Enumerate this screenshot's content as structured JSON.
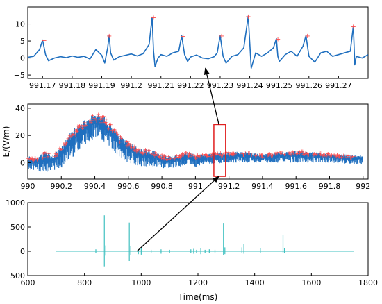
{
  "chart_data": [
    {
      "type": "line",
      "panel": "top",
      "xlim": [
        991.165,
        991.28
      ],
      "ylim": [
        -6,
        15
      ],
      "x_ticks": [
        991.17,
        991.18,
        991.19,
        991.2,
        991.21,
        991.22,
        991.23,
        991.24,
        991.25,
        991.26,
        991.27
      ],
      "x_tick_labels": [
        "991.17",
        "991.18",
        "991.19",
        "991.2",
        "991.21",
        "991.22",
        "991.23",
        "991.24",
        "991.25",
        "991.26",
        "991.27"
      ],
      "y_ticks": [
        -5,
        0,
        5,
        10
      ],
      "y_tick_labels": [
        "−5",
        "0",
        "5",
        "10"
      ],
      "line_color": "#1f6fbf",
      "marker_color": "#ff4d4d",
      "series": [
        {
          "x": [
            991.165,
            991.167,
            991.169,
            991.17,
            991.171,
            991.172,
            991.174,
            991.176,
            991.178,
            991.18,
            991.182,
            991.184,
            991.186,
            991.188,
            991.19,
            991.191,
            991.192,
            991.1925,
            991.193,
            991.194,
            991.196,
            991.198,
            991.2,
            991.202,
            991.204,
            991.206,
            991.207,
            991.2075,
            991.208,
            991.209,
            991.21,
            991.212,
            991.214,
            991.216,
            991.217,
            991.218,
            991.219,
            991.22,
            991.222,
            991.224,
            991.226,
            991.228,
            991.229,
            991.23,
            991.231,
            991.232,
            991.234,
            991.236,
            991.238,
            991.2395,
            991.2405,
            991.242,
            991.244,
            991.246,
            991.248,
            991.249,
            991.2495,
            991.25,
            991.252,
            991.254,
            991.256,
            991.258,
            991.259,
            991.26,
            991.262,
            991.264,
            991.266,
            991.268,
            991.27,
            991.272,
            991.274,
            991.275,
            991.2755,
            991.276,
            991.278,
            991.28
          ],
          "y": [
            0.2,
            0.5,
            2.5,
            5.3,
            1.0,
            -0.8,
            0.0,
            0.4,
            0.1,
            0.6,
            0.2,
            0.5,
            -0.3,
            2.5,
            0.8,
            -1.5,
            3.0,
            6.6,
            1.5,
            -0.6,
            0.4,
            0.8,
            1.2,
            0.6,
            1.3,
            4.0,
            12.0,
            2.0,
            -2.5,
            0.0,
            1.0,
            0.5,
            1.5,
            2.0,
            6.5,
            1.0,
            -1.0,
            0.3,
            0.9,
            0.0,
            -0.2,
            0.4,
            1.5,
            6.6,
            0.5,
            -1.5,
            0.5,
            1.0,
            3.0,
            12.3,
            -3.0,
            1.5,
            0.5,
            1.5,
            3.0,
            5.7,
            0.5,
            -1.0,
            1.0,
            2.0,
            0.5,
            3.5,
            6.6,
            0.5,
            -1.2,
            1.5,
            2.0,
            0.5,
            1.0,
            1.5,
            2.0,
            9.4,
            -2.0,
            0.5,
            0.0,
            1.0
          ]
        }
      ],
      "peaks": [
        {
          "x": 991.1705,
          "y": 5.3
        },
        {
          "x": 991.1925,
          "y": 6.6
        },
        {
          "x": 991.2075,
          "y": 12.0
        },
        {
          "x": 991.2175,
          "y": 6.5
        },
        {
          "x": 991.2305,
          "y": 6.6
        },
        {
          "x": 991.2395,
          "y": 12.3
        },
        {
          "x": 991.2495,
          "y": 5.7
        },
        {
          "x": 991.2595,
          "y": 6.6
        },
        {
          "x": 991.275,
          "y": 9.4
        }
      ]
    },
    {
      "type": "line",
      "panel": "middle",
      "ylabel": "E/(V/m)",
      "xlim": [
        990,
        992.03
      ],
      "ylim": [
        -12,
        43
      ],
      "x_ticks": [
        990,
        990.2,
        990.4,
        990.6,
        990.8,
        991,
        991.2,
        991.4,
        991.6,
        991.8,
        992
      ],
      "x_tick_labels": [
        "990",
        "990.2",
        "990.4",
        "990.6",
        "990.8",
        "991",
        "991.2",
        "991.4",
        "991.6",
        "991.8",
        "992"
      ],
      "y_ticks": [
        0,
        20,
        40
      ],
      "y_tick_labels": [
        "0",
        "20",
        "40"
      ],
      "line_color": "#1f6fbf",
      "marker_color": "#ff4d4d",
      "highlight_box": {
        "x": [
          991.11,
          991.18
        ],
        "y": [
          -10,
          28
        ],
        "color": "#e01f1f"
      },
      "series": [
        {
          "x": [
            990.0,
            990.05,
            990.1,
            990.15,
            990.2,
            990.25,
            990.3,
            990.35,
            990.4,
            990.45,
            990.5,
            990.55,
            990.6,
            990.65,
            990.7,
            990.75,
            990.8,
            990.85,
            990.9,
            990.95,
            991.0,
            991.1,
            991.2,
            991.3,
            991.4,
            991.5,
            991.6,
            991.7,
            991.8,
            991.9,
            992.0
          ],
          "upper": [
            5,
            4,
            8,
            6,
            12,
            22,
            28,
            32,
            36,
            35,
            28,
            20,
            16,
            12,
            10,
            9,
            6,
            5,
            6,
            8,
            6,
            7,
            8,
            8,
            6,
            8,
            9,
            8,
            7,
            6,
            5
          ],
          "lower": [
            -5,
            -6,
            -7,
            -6,
            -4,
            2,
            8,
            14,
            18,
            15,
            10,
            3,
            0,
            -2,
            -3,
            -3,
            -4,
            -4,
            -3,
            -2,
            -3,
            -1,
            0,
            0,
            0,
            0,
            0,
            0,
            0,
            -1,
            -1
          ]
        }
      ]
    },
    {
      "type": "line",
      "panel": "bottom",
      "xlabel": "Time(ms)",
      "xlim": [
        600,
        1800
      ],
      "ylim": [
        -500,
        1000
      ],
      "x_ticks": [
        600,
        800,
        1000,
        1200,
        1400,
        1600,
        1800
      ],
      "x_tick_labels": [
        "600",
        "800",
        "1000",
        "1200",
        "1400",
        "1600",
        "1800"
      ],
      "y_ticks": [
        -500,
        0,
        500,
        1000
      ],
      "y_tick_labels": [
        "−500",
        "0",
        "500",
        "1000"
      ],
      "line_color": "#40c0c0",
      "baseline": {
        "x": [
          700,
          1750
        ],
        "y": 0
      },
      "spikes": [
        {
          "x": 840,
          "top": 40,
          "bottom": -40
        },
        {
          "x": 870,
          "top": 740,
          "bottom": -310
        },
        {
          "x": 875,
          "top": 120,
          "bottom": -90
        },
        {
          "x": 958,
          "top": 590,
          "bottom": -200
        },
        {
          "x": 963,
          "top": 100,
          "bottom": -80
        },
        {
          "x": 990,
          "top": 40,
          "bottom": -60
        },
        {
          "x": 1000,
          "top": 60,
          "bottom": -70
        },
        {
          "x": 1035,
          "top": 30,
          "bottom": -30
        },
        {
          "x": 1070,
          "top": 40,
          "bottom": -50
        },
        {
          "x": 1100,
          "top": 30,
          "bottom": -40
        },
        {
          "x": 1175,
          "top": 40,
          "bottom": -40
        },
        {
          "x": 1185,
          "top": 50,
          "bottom": -50
        },
        {
          "x": 1195,
          "top": 30,
          "bottom": -30
        },
        {
          "x": 1210,
          "top": 60,
          "bottom": -60
        },
        {
          "x": 1225,
          "top": 30,
          "bottom": -40
        },
        {
          "x": 1240,
          "top": 40,
          "bottom": -40
        },
        {
          "x": 1260,
          "top": 30,
          "bottom": -30
        },
        {
          "x": 1290,
          "top": 570,
          "bottom": -80
        },
        {
          "x": 1295,
          "top": 80,
          "bottom": -60
        },
        {
          "x": 1355,
          "top": 80,
          "bottom": -30
        },
        {
          "x": 1362,
          "top": 150,
          "bottom": -50
        },
        {
          "x": 1420,
          "top": 60,
          "bottom": -30
        },
        {
          "x": 1500,
          "top": 340,
          "bottom": -40
        },
        {
          "x": 1505,
          "top": 60,
          "bottom": -30
        }
      ]
    }
  ],
  "annotations": {
    "arrow_color": "#000000",
    "arrow_mid_to_top": {
      "from": [
        991.14,
        28
      ],
      "to": [
        991.225,
        -3.0
      ]
    },
    "arrow_bottom_to_mid": {
      "from": [
        985,
        0
      ],
      "to": [
        991.14,
        -10
      ]
    }
  }
}
